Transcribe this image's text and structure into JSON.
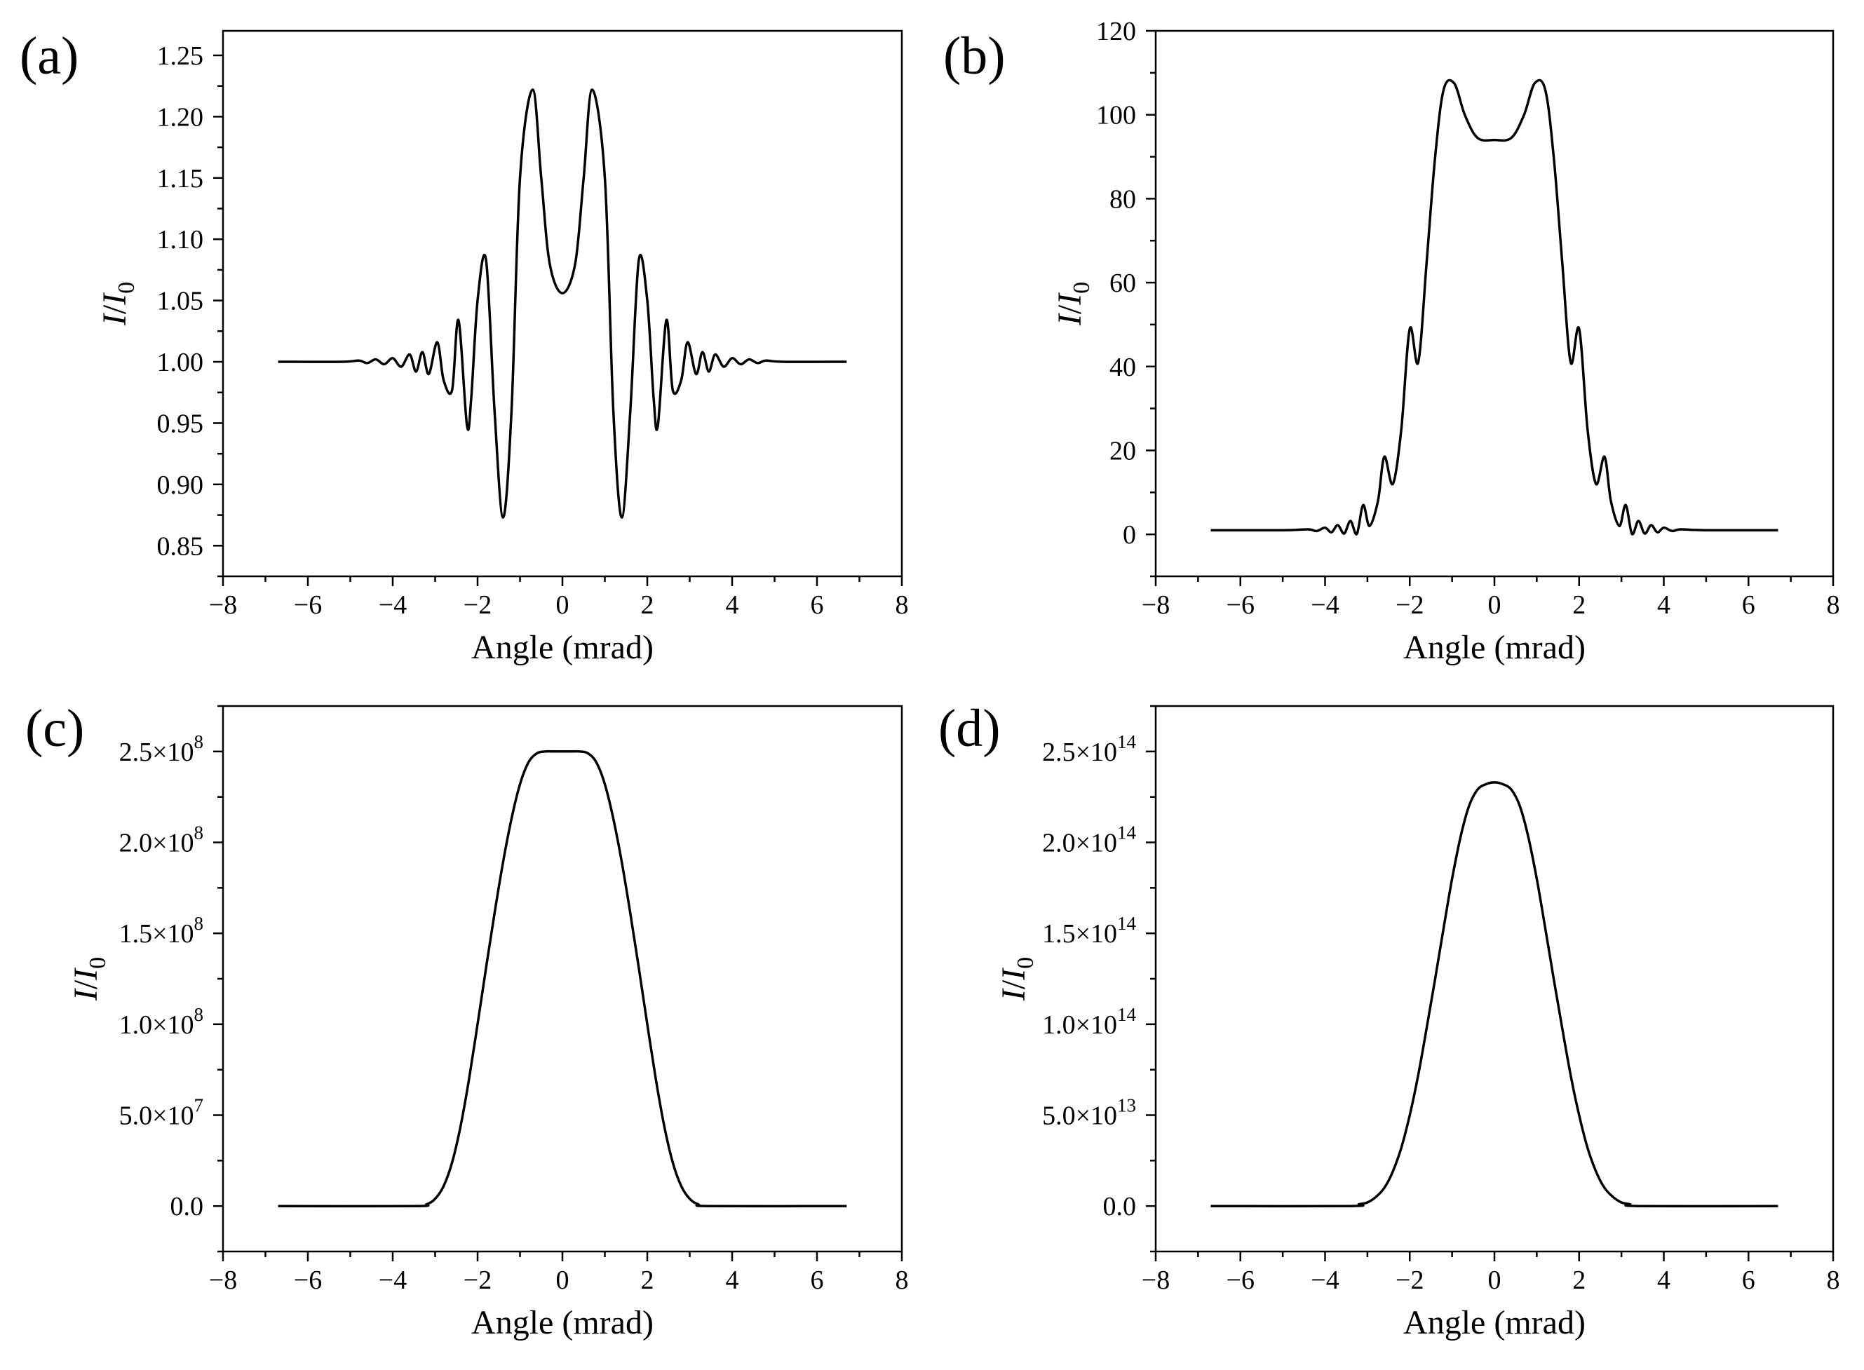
{
  "chart_data": [
    {
      "type": "line",
      "panel_label": "(a)",
      "xlabel": "Angle (mrad)",
      "ylabel": "I/I0",
      "xlim": [
        -8,
        8
      ],
      "ylim": [
        0.825,
        1.27
      ],
      "x_ticks": [
        "−8",
        "−6",
        "−4",
        "−2",
        "0",
        "2",
        "4",
        "6",
        "8"
      ],
      "y_ticks": [
        {
          "value": 0.85,
          "label": "0.85"
        },
        {
          "value": 0.9,
          "label": "0.90"
        },
        {
          "value": 0.95,
          "label": "0.95"
        },
        {
          "value": 1.0,
          "label": "1.00"
        },
        {
          "value": 1.05,
          "label": "1.05"
        },
        {
          "value": 1.1,
          "label": "1.10"
        },
        {
          "value": 1.15,
          "label": "1.15"
        },
        {
          "value": 1.2,
          "label": "1.20"
        },
        {
          "value": 1.25,
          "label": "1.25"
        }
      ],
      "series": [
        {
          "x": [
            -6.7,
            -5.2,
            -4.8,
            -4.6,
            -4.4,
            -4.2,
            -4.0,
            -3.8,
            -3.6,
            -3.45,
            -3.3,
            -3.15,
            -2.95,
            -2.8,
            -2.6,
            -2.45,
            -2.25,
            -2.15,
            -2.0,
            -1.8,
            -1.6,
            -1.4,
            -1.2,
            -1.0,
            -0.7,
            -0.5,
            -0.3,
            0.0,
            0.3,
            0.5,
            0.7,
            1.0,
            1.2,
            1.4,
            1.6,
            1.8,
            2.0,
            2.15,
            2.25,
            2.45,
            2.6,
            2.8,
            2.95,
            3.15,
            3.3,
            3.45,
            3.6,
            3.8,
            4.0,
            4.2,
            4.4,
            4.6,
            4.8,
            5.2,
            6.7
          ],
          "y": [
            1.0,
            1.0,
            1.001,
            0.999,
            1.002,
            0.998,
            1.003,
            0.996,
            1.006,
            0.992,
            1.008,
            0.99,
            1.016,
            0.985,
            0.977,
            1.034,
            0.948,
            0.97,
            1.05,
            1.083,
            0.96,
            0.873,
            0.96,
            1.15,
            1.222,
            1.15,
            1.08,
            1.056,
            1.08,
            1.15,
            1.222,
            1.15,
            0.96,
            0.873,
            0.96,
            1.083,
            1.05,
            0.97,
            0.948,
            1.034,
            0.977,
            0.985,
            1.016,
            0.99,
            1.008,
            0.992,
            1.006,
            0.996,
            1.003,
            0.998,
            1.002,
            0.999,
            1.001,
            1.0,
            1.0
          ]
        }
      ]
    },
    {
      "type": "line",
      "panel_label": "(b)",
      "xlabel": "Angle (mrad)",
      "ylabel": "I/I0",
      "xlim": [
        -8,
        8
      ],
      "ylim": [
        -10,
        120
      ],
      "x_ticks": [
        "−8",
        "−6",
        "−4",
        "−2",
        "0",
        "2",
        "4",
        "6",
        "8"
      ],
      "y_ticks": [
        {
          "value": 0,
          "label": "0"
        },
        {
          "value": 20,
          "label": "20"
        },
        {
          "value": 40,
          "label": "40"
        },
        {
          "value": 60,
          "label": "60"
        },
        {
          "value": 80,
          "label": "80"
        },
        {
          "value": 100,
          "label": "100"
        },
        {
          "value": 120,
          "label": "120"
        }
      ],
      "series": [
        {
          "x": [
            -6.7,
            -5.0,
            -4.4,
            -4.2,
            -4.0,
            -3.85,
            -3.7,
            -3.55,
            -3.4,
            -3.25,
            -3.1,
            -2.95,
            -2.75,
            -2.6,
            -2.4,
            -2.2,
            -2.0,
            -1.8,
            -1.6,
            -1.4,
            -1.2,
            -0.95,
            -0.7,
            -0.4,
            0.0,
            0.4,
            0.7,
            0.95,
            1.2,
            1.4,
            1.6,
            1.8,
            2.0,
            2.2,
            2.4,
            2.6,
            2.75,
            2.95,
            3.1,
            3.25,
            3.4,
            3.55,
            3.7,
            3.85,
            4.0,
            4.2,
            4.4,
            5.0,
            6.7
          ],
          "y": [
            1,
            1,
            1.2,
            0.8,
            1.6,
            0.5,
            2.2,
            0.2,
            3.2,
            0.1,
            7,
            2,
            8,
            18.5,
            12,
            25,
            49,
            41,
            65,
            90,
            106,
            107.5,
            100,
            94.5,
            94,
            94.5,
            100,
            107.5,
            106,
            90,
            65,
            41,
            49,
            25,
            12,
            18.5,
            8,
            2,
            7,
            0.1,
            3.2,
            0.2,
            2.2,
            0.5,
            1.6,
            0.8,
            1.2,
            1,
            1
          ]
        }
      ]
    },
    {
      "type": "line",
      "panel_label": "(c)",
      "xlabel": "Angle (mrad)",
      "ylabel": "I/I0",
      "xlim": [
        -8,
        8
      ],
      "ylim": [
        -25000000,
        275000000
      ],
      "x_ticks": [
        "−8",
        "−6",
        "−4",
        "−2",
        "0",
        "2",
        "4",
        "6",
        "8"
      ],
      "y_ticks": [
        {
          "value": 0,
          "label": "0.0",
          "mant": "0.0",
          "exp": ""
        },
        {
          "value": 50000000,
          "label": "5.0×10^7",
          "mant": "5.0×10",
          "exp": "7"
        },
        {
          "value": 100000000,
          "label": "1.0×10^8",
          "mant": "1.0×10",
          "exp": "8"
        },
        {
          "value": 150000000,
          "label": "1.5×10^8",
          "mant": "1.5×10",
          "exp": "8"
        },
        {
          "value": 200000000,
          "label": "2.0×10^8",
          "mant": "2.0×10",
          "exp": "8"
        },
        {
          "value": 250000000,
          "label": "2.5×10^8",
          "mant": "2.5×10",
          "exp": "8"
        }
      ],
      "series": [
        {
          "x": [
            -6.7,
            -3.5,
            -3.2,
            -3.0,
            -2.8,
            -2.6,
            -2.4,
            -2.2,
            -2.0,
            -1.8,
            -1.6,
            -1.4,
            -1.2,
            -1.0,
            -0.8,
            -0.6,
            -0.4,
            -0.2,
            0.0,
            0.2,
            0.4,
            0.6,
            0.8,
            1.0,
            1.2,
            1.4,
            1.6,
            1.8,
            2.0,
            2.2,
            2.4,
            2.6,
            2.8,
            3.0,
            3.2,
            3.5,
            6.7
          ],
          "y": [
            0,
            0,
            1000000,
            4000000,
            11000000,
            24000000,
            44000000,
            70000000,
            100000000,
            131000000,
            161000000,
            189000000,
            213000000,
            232000000,
            244000000,
            249000000,
            250000000,
            250000000,
            250000000,
            250000000,
            250000000,
            249000000,
            244000000,
            232000000,
            213000000,
            189000000,
            161000000,
            131000000,
            100000000,
            70000000,
            44000000,
            24000000,
            11000000,
            4000000,
            1000000,
            0,
            0
          ]
        }
      ]
    },
    {
      "type": "line",
      "panel_label": "(d)",
      "xlabel": "Angle (mrad)",
      "ylabel": "I/I0",
      "xlim": [
        -8,
        8
      ],
      "ylim": [
        -25000000000000,
        275000000000000
      ],
      "x_ticks": [
        "−8",
        "−6",
        "−4",
        "−2",
        "0",
        "2",
        "4",
        "6",
        "8"
      ],
      "y_ticks": [
        {
          "value": 0,
          "label": "0.0",
          "mant": "0.0",
          "exp": ""
        },
        {
          "value": 50000000000000,
          "label": "5.0×10^13",
          "mant": "5.0×10",
          "exp": "13"
        },
        {
          "value": 100000000000000,
          "label": "1.0×10^14",
          "mant": "1.0×10",
          "exp": "14"
        },
        {
          "value": 150000000000000,
          "label": "1.5×10^14",
          "mant": "1.5×10",
          "exp": "14"
        },
        {
          "value": 200000000000000,
          "label": "2.0×10^14",
          "mant": "2.0×10",
          "exp": "14"
        },
        {
          "value": 250000000000000,
          "label": "2.5×10^14",
          "mant": "2.5×10",
          "exp": "14"
        }
      ],
      "series": [
        {
          "x": [
            -6.7,
            -3.4,
            -3.2,
            -3.0,
            -2.8,
            -2.6,
            -2.4,
            -2.2,
            -2.0,
            -1.8,
            -1.6,
            -1.4,
            -1.2,
            -1.0,
            -0.8,
            -0.6,
            -0.4,
            -0.2,
            0.0,
            0.2,
            0.4,
            0.6,
            0.8,
            1.0,
            1.2,
            1.4,
            1.6,
            1.8,
            2.0,
            2.2,
            2.4,
            2.6,
            2.8,
            3.0,
            3.2,
            3.4,
            6.7
          ],
          "y": [
            0,
            0,
            1000000000000,
            2000000000000,
            5000000000000,
            10000000000000,
            19000000000000,
            32000000000000,
            50000000000000,
            72000000000000,
            98000000000000,
            125000000000000,
            153000000000000,
            180000000000000,
            203000000000000,
            220000000000000,
            229000000000000,
            232000000000000,
            233000000000000,
            232000000000000,
            229000000000000,
            220000000000000,
            203000000000000,
            180000000000000,
            153000000000000,
            125000000000000,
            98000000000000,
            72000000000000,
            50000000000000,
            32000000000000,
            19000000000000,
            10000000000000,
            5000000000000,
            2000000000000,
            1000000000000,
            0,
            0
          ]
        }
      ]
    }
  ]
}
